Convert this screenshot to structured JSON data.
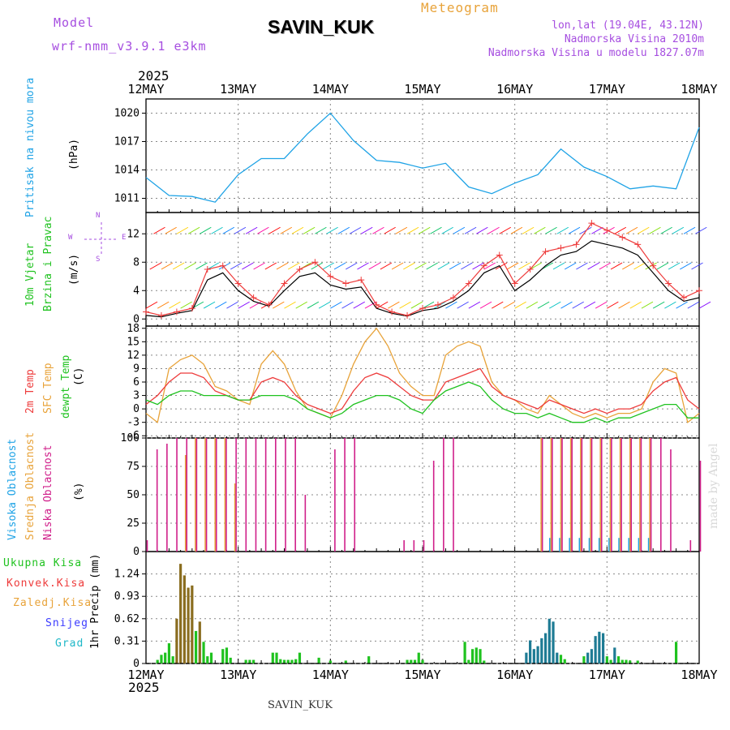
{
  "header": {
    "model_label": "Model",
    "model_name": "wrf-nmm_v3.9.1 e3km",
    "station": "SAVIN_KUK",
    "product": "Meteogram",
    "coords": "lon,lat (19.04E, 43.12N)",
    "elevation": "Nadmorska Visina 2010m",
    "model_elevation": "Nadmorska Visina u modelu 1827.07m",
    "year_top": "2025",
    "year_bottom": "2025",
    "footer_station": "SAVIN_KUK",
    "watermark": "made by Angel"
  },
  "panel_labels": {
    "pressure": {
      "title": "Pritisak na nivou mora",
      "unit": "(hPa)"
    },
    "wind": {
      "title1": "10m Vjetar",
      "title2": "Brzina i Pravac",
      "unit": "(m/s)",
      "compass_n": "N",
      "compass_e": "E",
      "compass_w": "W",
      "compass_s": "S"
    },
    "temp": {
      "t2m": "2m Temp",
      "sfc": "SFC Temp",
      "dew": "dewpt Temp",
      "unit": "(C)"
    },
    "cloud": {
      "high": "Visoka Oblacnost",
      "mid": "Srednja Oblacnost",
      "low": "Niska Oblacnost",
      "unit": "(%)"
    },
    "precip": {
      "total": "Ukupna Kisa",
      "conv": "Konvek.Kisa",
      "frozen": "Zaledj.Kisa",
      "snow": "Snijeg",
      "grad": "Grad",
      "ylabel": "1hr Precip (mm)"
    }
  },
  "x_ticks": [
    "12MAY",
    "13MAY",
    "14MAY",
    "15MAY",
    "16MAY",
    "17MAY",
    "18MAY"
  ],
  "colors": {
    "pressure": "#1fa3e6",
    "t2m": "#ee3b3b",
    "sfc": "#e8a33a",
    "dew": "#1fc21f",
    "wind": "#ee3b3b",
    "gust": "#000000",
    "high": "#1fa3e6",
    "mid": "#e8a33a",
    "low": "#d01f8a",
    "precip": "#1fc21f",
    "conv": "#c0392b"
  },
  "chart_data": [
    {
      "type": "line",
      "title": "Pritisak na nivou mora",
      "ylabel": "(hPa)",
      "ylim": [
        1009.5,
        1021.5
      ],
      "yticks": [
        1011,
        1014,
        1017,
        1020
      ],
      "x_hours": [
        0,
        6,
        12,
        18,
        24,
        30,
        36,
        42,
        48,
        54,
        60,
        66,
        72,
        78,
        84,
        90,
        96,
        102,
        108,
        114,
        120,
        126,
        132,
        138,
        144
      ],
      "values": [
        1013.2,
        1011.3,
        1011.2,
        1010.6,
        1013.5,
        1015.2,
        1015.2,
        1017.8,
        1020.0,
        1017.1,
        1015.0,
        1014.8,
        1014.2,
        1014.7,
        1012.2,
        1011.5,
        1012.6,
        1013.5,
        1016.2,
        1014.3,
        1013.3,
        1012.0,
        1012.3,
        1012.0,
        1018.5
      ]
    },
    {
      "type": "line",
      "title": "10m Vjetar Brzina i Pravac",
      "ylabel": "(m/s)",
      "ylim": [
        -1,
        15
      ],
      "yticks": [
        0,
        4,
        8,
        12
      ],
      "x_hours": [
        0,
        4,
        8,
        12,
        16,
        20,
        24,
        28,
        32,
        36,
        40,
        44,
        48,
        52,
        56,
        60,
        64,
        68,
        72,
        76,
        80,
        84,
        88,
        92,
        96,
        100,
        104,
        108,
        112,
        116,
        120,
        124,
        128,
        132,
        136,
        140,
        144
      ],
      "series": [
        {
          "name": "wind speed",
          "values": [
            1.0,
            0.5,
            1.0,
            1.5,
            7.0,
            7.5,
            5.0,
            3.0,
            2.0,
            5.0,
            7.0,
            8.0,
            6.0,
            5.0,
            5.5,
            2.0,
            1.0,
            0.5,
            1.5,
            2.0,
            3.0,
            5.0,
            7.5,
            9.0,
            5.0,
            7.0,
            9.5,
            10.0,
            10.5,
            13.5,
            12.5,
            11.5,
            10.5,
            7.5,
            5.0,
            3.0,
            4.0
          ]
        },
        {
          "name": "gust",
          "values": [
            0.5,
            0.3,
            0.8,
            1.2,
            5.5,
            6.5,
            4.0,
            2.5,
            1.8,
            4.0,
            6.0,
            6.5,
            4.8,
            4.2,
            4.5,
            1.5,
            0.8,
            0.4,
            1.2,
            1.5,
            2.5,
            4.0,
            6.5,
            7.5,
            4.0,
            5.5,
            7.5,
            9.0,
            9.5,
            11.0,
            10.5,
            10.0,
            9.0,
            6.5,
            4.0,
            2.5,
            3.0
          ]
        }
      ]
    },
    {
      "type": "line",
      "title": "Temperature",
      "ylabel": "(C)",
      "ylim": [
        -6.5,
        18.5
      ],
      "yticks": [
        -6,
        -3,
        0,
        3,
        6,
        9,
        12,
        15,
        18
      ],
      "x_hours": [
        0,
        3,
        6,
        9,
        12,
        15,
        18,
        21,
        24,
        27,
        30,
        33,
        36,
        39,
        42,
        45,
        48,
        51,
        54,
        57,
        60,
        63,
        66,
        69,
        72,
        75,
        78,
        81,
        84,
        87,
        90,
        93,
        96,
        99,
        102,
        105,
        108,
        111,
        114,
        117,
        120,
        123,
        126,
        129,
        132,
        135,
        138,
        141,
        144
      ],
      "series": [
        {
          "name": "2m Temp",
          "values": [
            1,
            3,
            6,
            8,
            8,
            7,
            4,
            3,
            2,
            2,
            6,
            7,
            6,
            3,
            1,
            0,
            -1,
            0,
            4,
            7,
            8,
            7,
            5,
            3,
            2,
            2,
            6,
            7,
            8,
            9,
            5,
            3,
            2,
            1,
            0,
            2,
            1,
            0,
            -1,
            0,
            -1,
            0,
            0,
            1,
            4,
            6,
            7,
            2,
            0
          ]
        },
        {
          "name": "SFC Temp",
          "values": [
            -1,
            -3,
            9,
            11,
            12,
            10,
            5,
            4,
            2,
            1,
            10,
            13,
            10,
            4,
            0,
            -1,
            -2,
            3,
            10,
            15,
            18,
            14,
            8,
            5,
            3,
            3,
            12,
            14,
            15,
            14,
            6,
            3,
            2,
            0,
            -1,
            3,
            1,
            -1,
            -2,
            -1,
            -2,
            -1,
            -1,
            0,
            6,
            9,
            8,
            -3,
            -1
          ]
        },
        {
          "name": "dewpt Temp",
          "values": [
            2,
            1,
            3,
            4,
            4,
            3,
            3,
            3,
            2,
            2,
            3,
            3,
            3,
            2,
            0,
            -1,
            -2,
            -1,
            1,
            2,
            3,
            3,
            2,
            0,
            -1,
            2,
            4,
            5,
            6,
            5,
            2,
            0,
            -1,
            -1,
            -2,
            -1,
            -2,
            -3,
            -3,
            -2,
            -3,
            -2,
            -2,
            -1,
            0,
            1,
            1,
            -2,
            -2
          ]
        }
      ]
    },
    {
      "type": "bar",
      "title": "Cloud cover",
      "ylabel": "(%)",
      "ylim": [
        0,
        100
      ],
      "yticks": [
        0,
        25,
        50,
        75,
        100
      ],
      "series": [
        {
          "name": "Visoka Oblacnost",
          "values": [
            0,
            0,
            0,
            0,
            0,
            0,
            0,
            0,
            0,
            0,
            0,
            0,
            0,
            0,
            0,
            0,
            0,
            0,
            0,
            0,
            0,
            0,
            0,
            0,
            0,
            0,
            0,
            0,
            0,
            0,
            0,
            0,
            0,
            0,
            0,
            0,
            0,
            0,
            0,
            0,
            0,
            12,
            12,
            12,
            12,
            12,
            12,
            12,
            12,
            12,
            12,
            12,
            0,
            0,
            0,
            0,
            0
          ]
        },
        {
          "name": "Srednja Oblacnost",
          "values": [
            0,
            0,
            0,
            0,
            85,
            100,
            100,
            100,
            100,
            60,
            0,
            0,
            0,
            0,
            0,
            0,
            0,
            0,
            0,
            0,
            0,
            0,
            0,
            0,
            0,
            0,
            0,
            0,
            0,
            0,
            0,
            0,
            0,
            0,
            0,
            0,
            0,
            0,
            0,
            0,
            100,
            100,
            100,
            100,
            100,
            100,
            100,
            100,
            100,
            100,
            100,
            100,
            0,
            0,
            0,
            0,
            0
          ]
        },
        {
          "name": "Niska Oblacnost",
          "values": [
            10,
            90,
            95,
            100,
            100,
            100,
            100,
            100,
            100,
            100,
            100,
            100,
            100,
            100,
            100,
            100,
            50,
            0,
            0,
            90,
            100,
            100,
            0,
            0,
            0,
            0,
            10,
            10,
            10,
            80,
            100,
            100,
            0,
            0,
            0,
            0,
            0,
            0,
            0,
            0,
            100,
            100,
            100,
            100,
            100,
            100,
            100,
            100,
            100,
            100,
            100,
            100,
            100,
            90,
            0,
            10,
            80
          ]
        }
      ]
    },
    {
      "type": "bar",
      "title": "1hr Precip (mm)",
      "ylabel": "1hr Precip (mm)",
      "ylim": [
        0,
        1.55
      ],
      "yticks": [
        0,
        0.31,
        0.62,
        0.93,
        1.24
      ],
      "x_hours": [
        3,
        4,
        5,
        6,
        7,
        8,
        9,
        10,
        11,
        12,
        13,
        14,
        15,
        16,
        17,
        20,
        21,
        22,
        26,
        27,
        28,
        33,
        34,
        35,
        36,
        37,
        38,
        39,
        40,
        45,
        48,
        52,
        58,
        68,
        69,
        70,
        71,
        72,
        83,
        84,
        85,
        86,
        87,
        88,
        99,
        100,
        101,
        102,
        103,
        104,
        105,
        106,
        107,
        108,
        109,
        114,
        115,
        116,
        117,
        118,
        119,
        120,
        121,
        122,
        123,
        124,
        125,
        126,
        128,
        138
      ],
      "values": [
        0.05,
        0.12,
        0.15,
        0.28,
        0.1,
        0.62,
        1.38,
        1.22,
        1.05,
        1.08,
        0.45,
        0.58,
        0.3,
        0.1,
        0.15,
        0.2,
        0.22,
        0.08,
        0.05,
        0.05,
        0.05,
        0.15,
        0.15,
        0.06,
        0.05,
        0.05,
        0.05,
        0.06,
        0.15,
        0.08,
        0.04,
        0.04,
        0.1,
        0.05,
        0.05,
        0.05,
        0.15,
        0.05,
        0.3,
        0.05,
        0.2,
        0.22,
        0.2,
        0.04,
        0.15,
        0.32,
        0.2,
        0.24,
        0.35,
        0.42,
        0.62,
        0.58,
        0.15,
        0.12,
        0.06,
        0.1,
        0.15,
        0.2,
        0.38,
        0.44,
        0.42,
        0.1,
        0.05,
        0.22,
        0.1,
        0.05,
        0.05,
        0.04,
        0.04,
        0.3
      ]
    }
  ]
}
